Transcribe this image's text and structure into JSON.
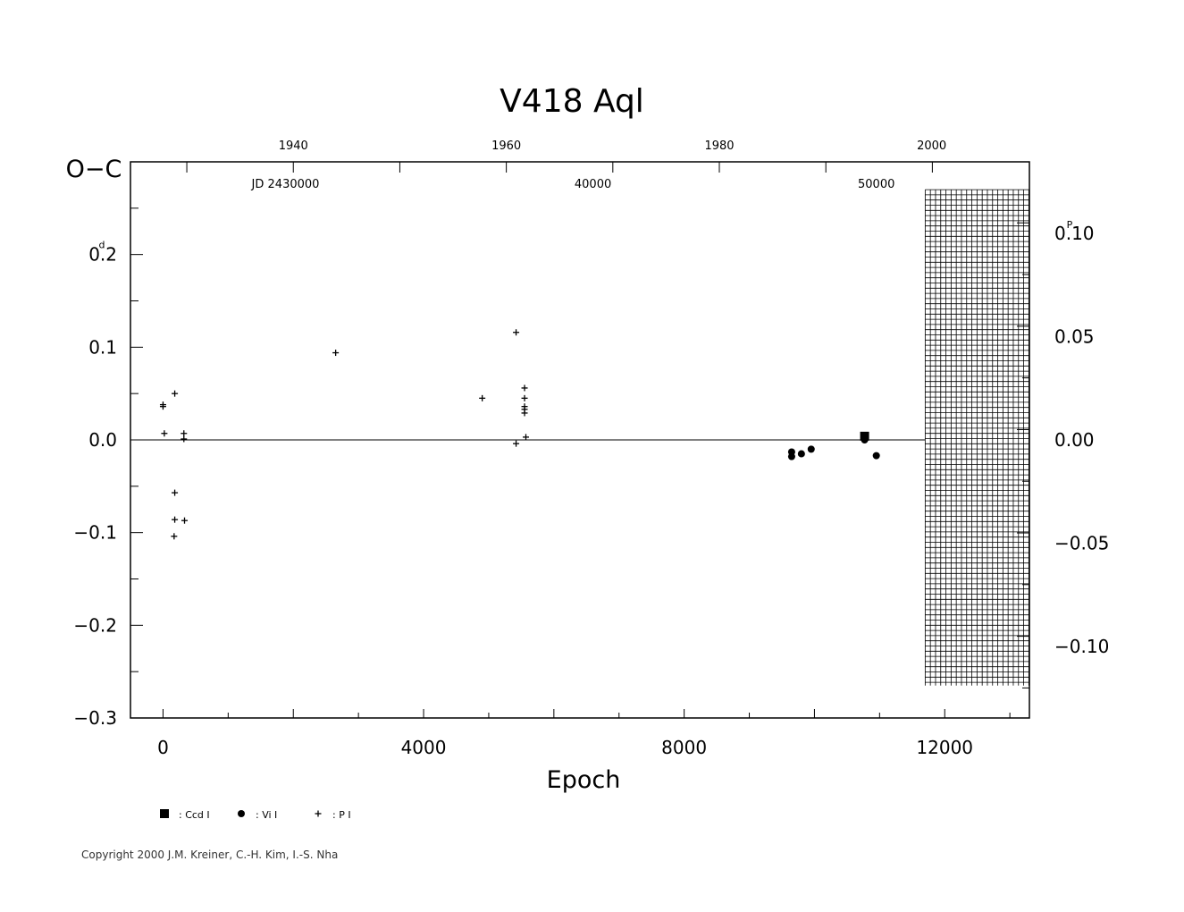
{
  "chart_data": {
    "type": "scatter",
    "title": "V418  Aql",
    "xlabel": "Epoch",
    "ylabel": "O−C",
    "ylabel_unit": "d",
    "right_axis_unit": "P",
    "xlim": [
      -500,
      13300
    ],
    "ylim": [
      -0.3,
      0.3
    ],
    "x_ticks": [
      {
        "value": 0,
        "label": "0"
      },
      {
        "value": 4000,
        "label": "4000"
      },
      {
        "value": 8000,
        "label": "8000"
      },
      {
        "value": 12000,
        "label": "12000"
      }
    ],
    "y_ticks": [
      {
        "value": 0.2,
        "label": "0.2"
      },
      {
        "value": 0.1,
        "label": "0.1"
      },
      {
        "value": 0.0,
        "label": "0.0"
      },
      {
        "value": -0.1,
        "label": "−0.1"
      },
      {
        "value": -0.2,
        "label": "−0.2"
      },
      {
        "value": -0.3,
        "label": "−0.3"
      }
    ],
    "right_ticks": [
      {
        "value": 0.1,
        "label": "0.10"
      },
      {
        "value": 0.05,
        "label": "0.05"
      },
      {
        "value": 0.0,
        "label": "0.00"
      },
      {
        "value": -0.05,
        "label": "−0.05"
      },
      {
        "value": -0.1,
        "label": "−0.10"
      }
    ],
    "period_days": 2.23,
    "top_year_ticks": [
      {
        "epoch": 2000,
        "label": "1940"
      },
      {
        "epoch": 5270,
        "label": "1960"
      },
      {
        "epoch": 8540,
        "label": "1980"
      },
      {
        "epoch": 11800,
        "label": "2000"
      }
    ],
    "jd_labels": [
      {
        "epoch": 1880,
        "label": "JD  2430000"
      },
      {
        "epoch": 6600,
        "label": "40000"
      },
      {
        "epoch": 10950,
        "label": "50000"
      }
    ],
    "hatch_region": {
      "x_from": 11700,
      "x_to": 13300,
      "y_from": -0.265,
      "y_to": 0.27
    },
    "legend": [
      {
        "symbol": "square",
        "label": ": Ccd  I"
      },
      {
        "symbol": "circle",
        "label": ": Vi  I"
      },
      {
        "symbol": "plus",
        "label": ": P  I"
      }
    ],
    "series": [
      {
        "name": "Ccd I",
        "symbol": "square",
        "points": [
          [
            10770,
            0.004
          ]
        ]
      },
      {
        "name": "Vi I",
        "symbol": "circle",
        "points": [
          [
            9650,
            -0.013
          ],
          [
            9650,
            -0.018
          ],
          [
            9800,
            -0.015
          ],
          [
            9950,
            -0.01
          ],
          [
            10950,
            -0.017
          ],
          [
            10770,
            0.0
          ]
        ]
      },
      {
        "name": "P I",
        "symbol": "plus",
        "points": [
          [
            0,
            0.038
          ],
          [
            0,
            0.036
          ],
          [
            20,
            0.007
          ],
          [
            180,
            0.05
          ],
          [
            180,
            -0.057
          ],
          [
            180,
            -0.086
          ],
          [
            170,
            -0.104
          ],
          [
            320,
            0.007
          ],
          [
            320,
            0.001
          ],
          [
            330,
            -0.087
          ],
          [
            2650,
            0.094
          ],
          [
            4900,
            0.045
          ],
          [
            5420,
            0.116
          ],
          [
            5420,
            -0.004
          ],
          [
            5550,
            0.056
          ],
          [
            5550,
            0.045
          ],
          [
            5550,
            0.036
          ],
          [
            5550,
            0.033
          ],
          [
            5550,
            0.029
          ],
          [
            5570,
            0.003
          ]
        ]
      }
    ]
  },
  "copyright": "Copyright 2000 J.M. Kreiner, C.-H. Kim, I.-S. Nha"
}
